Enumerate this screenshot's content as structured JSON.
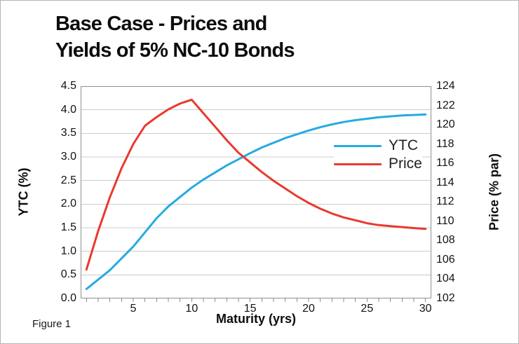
{
  "figure": {
    "title_line1": "Base Case - Prices and",
    "title_line2": "Yields of 5% NC-10 Bonds",
    "caption": "Figure 1"
  },
  "axes": {
    "left": {
      "label": "YTC (%)",
      "ticks": [
        "0.0",
        "0.5",
        "1.0",
        "1.5",
        "2.0",
        "2.5",
        "3.0",
        "3.5",
        "4.0",
        "4.5"
      ]
    },
    "right": {
      "label": "Price (% par)",
      "ticks": [
        "102",
        "104",
        "106",
        "108",
        "110",
        "112",
        "114",
        "116",
        "118",
        "120",
        "122",
        "124"
      ]
    },
    "x": {
      "label": "Maturity (yrs)",
      "ticks": [
        "5",
        "10",
        "15",
        "20",
        "25",
        "30"
      ]
    }
  },
  "colors": {
    "grid": "#cccccc",
    "frame": "#8f8f8f",
    "tick": "#8f8f8f",
    "background": "#ffffff"
  },
  "chart_data": {
    "type": "line",
    "title": "Base Case - Prices and Yields of 5% NC-10 Bonds",
    "xlabel": "Maturity (yrs)",
    "ylabel_left": "YTC (%)",
    "ylabel_right": "Price (% par)",
    "xlim": [
      0.5,
      30.5
    ],
    "ylim_left": [
      0,
      4.5
    ],
    "ylim_right": [
      102,
      124
    ],
    "grid": "horizontal",
    "legend_position": "inside-right",
    "x": [
      1,
      2,
      3,
      4,
      5,
      6,
      7,
      8,
      9,
      10,
      11,
      12,
      13,
      14,
      15,
      16,
      17,
      18,
      19,
      20,
      21,
      22,
      23,
      24,
      25,
      26,
      27,
      28,
      29,
      30
    ],
    "series": [
      {
        "name": "YTC",
        "axis": "left",
        "color": "#27aae1",
        "values": [
          0.2,
          0.4,
          0.6,
          0.85,
          1.1,
          1.4,
          1.7,
          1.95,
          2.15,
          2.35,
          2.52,
          2.67,
          2.82,
          2.95,
          3.08,
          3.2,
          3.3,
          3.4,
          3.48,
          3.56,
          3.63,
          3.69,
          3.74,
          3.78,
          3.81,
          3.84,
          3.86,
          3.88,
          3.89,
          3.9
        ]
      },
      {
        "name": "Price",
        "axis": "right",
        "color": "#e9392f",
        "values": [
          105.0,
          109.0,
          112.5,
          115.5,
          118.0,
          119.9,
          120.8,
          121.6,
          122.2,
          122.6,
          121.2,
          119.8,
          118.4,
          117.1,
          116.1,
          115.1,
          114.2,
          113.4,
          112.6,
          111.9,
          111.3,
          110.8,
          110.4,
          110.1,
          109.8,
          109.6,
          109.5,
          109.4,
          109.3,
          109.2
        ]
      }
    ]
  }
}
